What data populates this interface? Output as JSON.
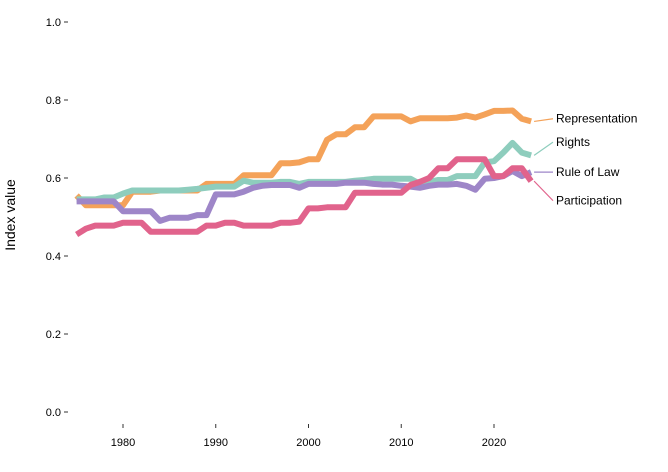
{
  "chart_data": {
    "type": "line",
    "title": "",
    "xlabel": "",
    "ylabel": "Index value",
    "xlim": [
      1974.5,
      2025.5
    ],
    "ylim": [
      0,
      1.0
    ],
    "x_ticks": [
      1980,
      1990,
      2000,
      2010,
      2020
    ],
    "y_ticks": [
      0.0,
      0.2,
      0.4,
      0.6,
      0.8,
      1.0
    ],
    "y_tick_labels": [
      "0.0",
      "0.2",
      "0.4",
      "0.6",
      "0.8",
      "1.0"
    ],
    "grid": false,
    "legend": "direct labels at line ends",
    "x": [
      1975,
      1976,
      1977,
      1978,
      1979,
      1980,
      1981,
      1982,
      1983,
      1984,
      1985,
      1986,
      1987,
      1988,
      1989,
      1990,
      1991,
      1992,
      1993,
      1994,
      1995,
      1996,
      1997,
      1998,
      1999,
      2000,
      2001,
      2002,
      2003,
      2004,
      2005,
      2006,
      2007,
      2008,
      2009,
      2010,
      2011,
      2012,
      2013,
      2014,
      2015,
      2016,
      2017,
      2018,
      2019,
      2020,
      2021,
      2022,
      2023,
      2024
    ],
    "series": [
      {
        "name": "Representation",
        "color": "#F4A259",
        "values": [
          0.555,
          0.53,
          0.53,
          0.53,
          0.53,
          0.53,
          0.565,
          0.565,
          0.565,
          0.568,
          0.568,
          0.568,
          0.568,
          0.568,
          0.585,
          0.585,
          0.585,
          0.585,
          0.607,
          0.607,
          0.607,
          0.607,
          0.638,
          0.638,
          0.64,
          0.648,
          0.648,
          0.698,
          0.712,
          0.712,
          0.73,
          0.73,
          0.758,
          0.758,
          0.758,
          0.758,
          0.745,
          0.753,
          0.753,
          0.753,
          0.753,
          0.755,
          0.76,
          0.755,
          0.763,
          0.772,
          0.772,
          0.773,
          0.752,
          0.745
        ]
      },
      {
        "name": "Rights",
        "color": "#8ECDBD",
        "values": [
          0.545,
          0.545,
          0.545,
          0.55,
          0.55,
          0.56,
          0.568,
          0.568,
          0.568,
          0.568,
          0.568,
          0.568,
          0.57,
          0.572,
          0.575,
          0.578,
          0.578,
          0.578,
          0.593,
          0.588,
          0.588,
          0.588,
          0.59,
          0.59,
          0.585,
          0.59,
          0.59,
          0.59,
          0.59,
          0.59,
          0.593,
          0.595,
          0.598,
          0.598,
          0.598,
          0.598,
          0.598,
          0.585,
          0.59,
          0.595,
          0.595,
          0.605,
          0.605,
          0.605,
          0.64,
          0.643,
          0.665,
          0.69,
          0.665,
          0.658
        ]
      },
      {
        "name": "Rule of Law",
        "color": "#9E86C8",
        "values": [
          0.54,
          0.54,
          0.54,
          0.54,
          0.54,
          0.515,
          0.515,
          0.515,
          0.515,
          0.49,
          0.498,
          0.498,
          0.498,
          0.505,
          0.505,
          0.558,
          0.558,
          0.558,
          0.565,
          0.575,
          0.58,
          0.582,
          0.582,
          0.582,
          0.575,
          0.585,
          0.585,
          0.585,
          0.585,
          0.588,
          0.588,
          0.588,
          0.585,
          0.583,
          0.583,
          0.58,
          0.578,
          0.575,
          0.58,
          0.583,
          0.583,
          0.585,
          0.58,
          0.57,
          0.598,
          0.6,
          0.605,
          0.618,
          0.605,
          0.615
        ]
      },
      {
        "name": "Participation",
        "color": "#E1638C",
        "values": [
          0.455,
          0.47,
          0.478,
          0.478,
          0.478,
          0.485,
          0.485,
          0.485,
          0.462,
          0.462,
          0.462,
          0.462,
          0.462,
          0.462,
          0.478,
          0.478,
          0.485,
          0.485,
          0.478,
          0.478,
          0.478,
          0.478,
          0.485,
          0.485,
          0.488,
          0.522,
          0.522,
          0.525,
          0.525,
          0.525,
          0.562,
          0.562,
          0.562,
          0.562,
          0.562,
          0.562,
          0.582,
          0.59,
          0.6,
          0.625,
          0.625,
          0.648,
          0.648,
          0.648,
          0.648,
          0.605,
          0.605,
          0.625,
          0.625,
          0.592
        ]
      }
    ]
  }
}
